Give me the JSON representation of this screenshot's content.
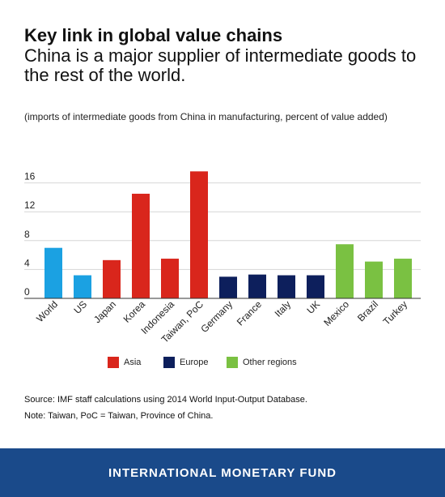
{
  "header": {
    "title": "Key link in global value chains",
    "subtitle": "China is a major supplier of intermediate goods to the rest of the world.",
    "units": "(imports of intermediate goods from China in manufacturing, percent of value added)"
  },
  "chart_data": {
    "type": "bar",
    "categories": [
      "World",
      "US",
      "Japan",
      "Korea",
      "Indonesia",
      "Taiwan, PoC",
      "Germany",
      "France",
      "Italy",
      "UK",
      "Mexico",
      "Brazil",
      "Turkey"
    ],
    "values": [
      7.0,
      3.2,
      5.3,
      14.5,
      5.5,
      17.6,
      3.0,
      3.3,
      3.2,
      3.2,
      7.5,
      5.1,
      5.5
    ],
    "groups": [
      "Other regions",
      "Other regions",
      "Asia",
      "Asia",
      "Asia",
      "Asia",
      "Europe",
      "Europe",
      "Europe",
      "Europe",
      "Other regions",
      "Other regions",
      "Other regions"
    ],
    "bar_colors": [
      "#1ba1e2",
      "#1ba1e2",
      "#d9261c",
      "#d9261c",
      "#d9261c",
      "#d9261c",
      "#0d1f5c",
      "#0d1f5c",
      "#0d1f5c",
      "#0d1f5c",
      "#7ac142",
      "#7ac142",
      "#7ac142"
    ],
    "yticks": [
      0,
      4,
      8,
      12,
      16
    ],
    "ylim": [
      0,
      20
    ],
    "grid": true
  },
  "legend": {
    "items": [
      {
        "label": "Asia",
        "color": "#d9261c"
      },
      {
        "label": "Europe",
        "color": "#0d1f5c"
      },
      {
        "label": "Other regions",
        "color": "#7ac142"
      }
    ]
  },
  "footnotes": {
    "source": "Source: IMF staff calculations using 2014 World Input-Output Database.",
    "note": "Note: Taiwan, PoC = Taiwan, Province of China."
  },
  "footer": {
    "org": "INTERNATIONAL MONETARY FUND",
    "color": "#1a4a8a"
  }
}
